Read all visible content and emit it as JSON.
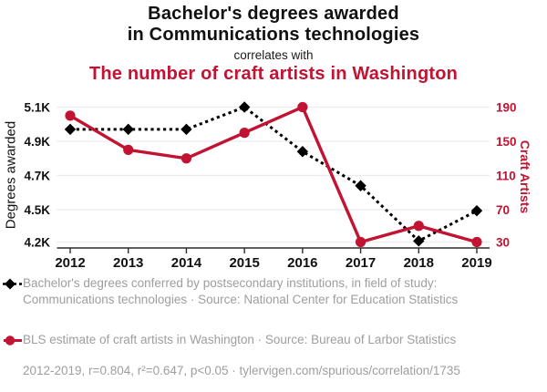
{
  "header": {
    "title_line1": "Bachelor's degrees awarded",
    "title_line2": "in Communications technologies",
    "connector": "correlates with",
    "subtitle": "The number of craft artists in Washington"
  },
  "colors": {
    "degrees_series": "#000000",
    "craft_series": "#c21333",
    "legend_text": "#9e9e9e",
    "grid": "#ececec",
    "axis": "#2b2b2b"
  },
  "chart_data": {
    "type": "line",
    "x": [
      2012,
      2013,
      2014,
      2015,
      2016,
      2017,
      2018,
      2019
    ],
    "x_tick_labels": [
      "2012",
      "2013",
      "2014",
      "2015",
      "2016",
      "2017",
      "2018",
      "2019"
    ],
    "series": [
      {
        "name": "Bachelor's degrees awarded in Communications technologies",
        "axis": "left",
        "line_style": "dotted",
        "marker": "diamond",
        "color": "#000000",
        "values": [
          4970,
          4970,
          4970,
          5100,
          4840,
          4640,
          4210,
          4490
        ]
      },
      {
        "name": "The number of craft artists in Washington",
        "axis": "right",
        "line_style": "solid",
        "marker": "circle",
        "color": "#c21333",
        "values": [
          180,
          140,
          130,
          160,
          190,
          30,
          50,
          30
        ]
      }
    ],
    "left_axis": {
      "label": "Degrees awarded",
      "tick_labels": [
        "5.1K",
        "4.9K",
        "4.7K",
        "4.5K",
        "4.2K"
      ],
      "tick_values": [
        5100,
        4900,
        4700,
        4500,
        4200
      ]
    },
    "right_axis": {
      "label": "Craft Artists",
      "tick_labels": [
        "190",
        "150",
        "110",
        "70",
        "30"
      ],
      "tick_values": [
        190,
        150,
        110,
        70,
        30
      ]
    },
    "grid": "horizontal",
    "legend_position": "bottom"
  },
  "legend": [
    {
      "marker": "black-diamond-dotted",
      "text": "Bachelor's degrees conferred by postsecondary institutions, in field of study: Communications technologies · Source: National Center for Education Statistics"
    },
    {
      "marker": "red-circle-solid",
      "text": "BLS estimate of craft artists in Washington · Source: Bureau of Larbor Statistics"
    }
  ],
  "footer": {
    "stats": "2012-2019, r=0.804, r²=0.647, p<0.05 · tylervigen.com/spurious/correlation/1735"
  }
}
